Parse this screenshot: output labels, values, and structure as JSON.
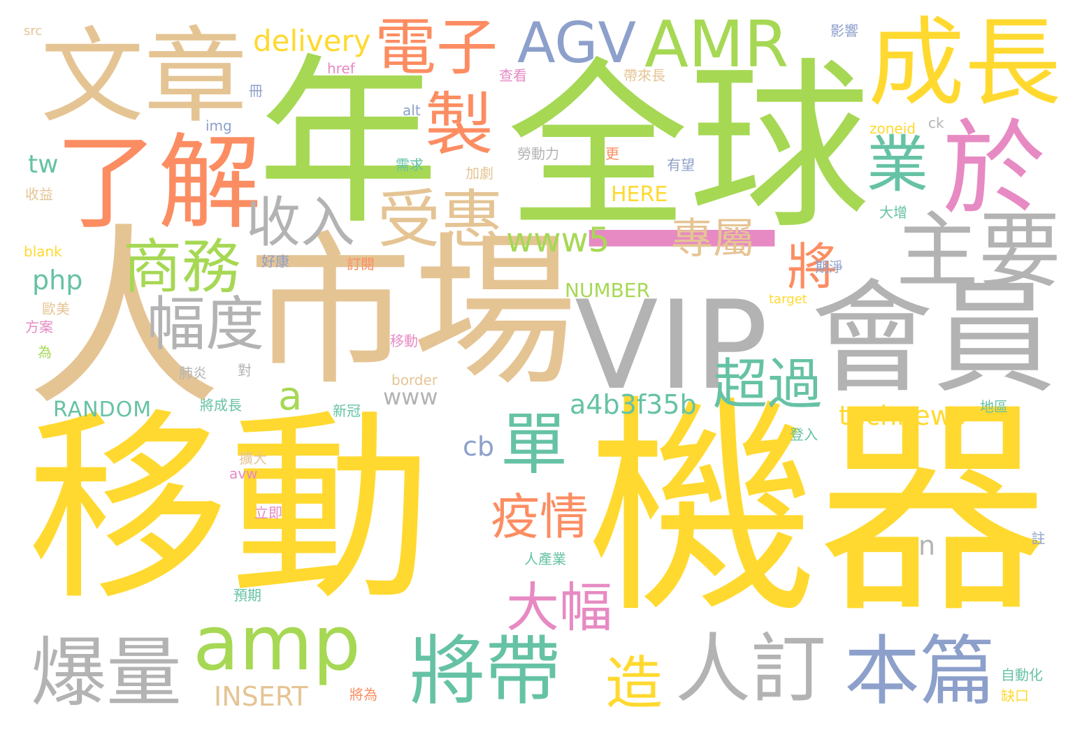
{
  "colors": {
    "yellow": "#FFD92F",
    "green": "#A6D854",
    "tan": "#E5C494",
    "gray": "#B3B3B3",
    "orange": "#FC8D62",
    "blue": "#8DA0CB",
    "pink": "#E78AC3",
    "teal": "#66C2A5"
  },
  "words": [
    {
      "text": "移動",
      "color": "yellow"
    },
    {
      "text": "機器",
      "color": "yellow"
    },
    {
      "text": "全球",
      "color": "green"
    },
    {
      "text": "年",
      "color": "green"
    },
    {
      "text": "市場",
      "color": "tan"
    },
    {
      "text": "人",
      "color": "tan"
    },
    {
      "text": "VIP",
      "color": "gray"
    },
    {
      "text": "會員",
      "color": "gray"
    },
    {
      "text": "文章",
      "color": "tan"
    },
    {
      "text": "了解",
      "color": "orange"
    },
    {
      "text": "成長",
      "color": "yellow"
    },
    {
      "text": "一",
      "color": "pink"
    },
    {
      "text": "主要",
      "color": "gray"
    },
    {
      "text": "於",
      "color": "pink"
    },
    {
      "text": "AMR",
      "color": "green"
    },
    {
      "text": "AGV",
      "color": "blue"
    },
    {
      "text": "電子",
      "color": "orange"
    },
    {
      "text": "製",
      "color": "orange"
    },
    {
      "text": "業",
      "color": "teal"
    },
    {
      "text": "受惠",
      "color": "tan"
    },
    {
      "text": "收入",
      "color": "gray"
    },
    {
      "text": "商務",
      "color": "green"
    },
    {
      "text": "幅度",
      "color": "gray"
    },
    {
      "text": "www5",
      "color": "green"
    },
    {
      "text": "專屬",
      "color": "tan"
    },
    {
      "text": "將",
      "color": "orange"
    },
    {
      "text": "超過",
      "color": "teal"
    },
    {
      "text": "a4b3f35b",
      "color": "teal"
    },
    {
      "text": "單",
      "color": "teal"
    },
    {
      "text": "疫情",
      "color": "orange"
    },
    {
      "text": "大幅",
      "color": "pink"
    },
    {
      "text": "amp",
      "color": "green"
    },
    {
      "text": "爆量",
      "color": "gray"
    },
    {
      "text": "將帶",
      "color": "teal"
    },
    {
      "text": "造",
      "color": "yellow"
    },
    {
      "text": "人訂",
      "color": "gray"
    },
    {
      "text": "本篇",
      "color": "blue"
    },
    {
      "text": "delivery",
      "color": "yellow"
    },
    {
      "text": "tw",
      "color": "teal"
    },
    {
      "text": "php",
      "color": "teal"
    },
    {
      "text": "a",
      "color": "green"
    },
    {
      "text": "www",
      "color": "gray"
    },
    {
      "text": "technews",
      "color": "yellow"
    },
    {
      "text": "cb",
      "color": "blue"
    },
    {
      "text": "RANDOM",
      "color": "teal"
    },
    {
      "text": "INSERT",
      "color": "tan"
    },
    {
      "text": "NUMBER",
      "color": "green"
    },
    {
      "text": "HERE",
      "color": "yellow"
    },
    {
      "text": "n",
      "color": "gray"
    },
    {
      "text": "src",
      "color": "tan"
    },
    {
      "text": "href",
      "color": "pink"
    },
    {
      "text": "冊",
      "color": "blue"
    },
    {
      "text": "alt",
      "color": "blue"
    },
    {
      "text": "img",
      "color": "blue"
    },
    {
      "text": "收益",
      "color": "tan"
    },
    {
      "text": "blank",
      "color": "yellow"
    },
    {
      "text": "好康",
      "color": "blue"
    },
    {
      "text": "訂閱",
      "color": "orange"
    },
    {
      "text": "歐美",
      "color": "tan"
    },
    {
      "text": "方案",
      "color": "pink"
    },
    {
      "text": "為",
      "color": "green"
    },
    {
      "text": "移動",
      "color": "pink"
    },
    {
      "text": "肺炎",
      "color": "gray"
    },
    {
      "text": "對",
      "color": "gray"
    },
    {
      "text": "border",
      "color": "tan"
    },
    {
      "text": "將成長",
      "color": "teal"
    },
    {
      "text": "新冠",
      "color": "teal"
    },
    {
      "text": "擴大",
      "color": "tan"
    },
    {
      "text": "avw",
      "color": "pink"
    },
    {
      "text": "立即",
      "color": "pink"
    },
    {
      "text": "預期",
      "color": "teal"
    },
    {
      "text": "人產業",
      "color": "teal"
    },
    {
      "text": "將為",
      "color": "orange"
    },
    {
      "text": "影響",
      "color": "blue"
    },
    {
      "text": "查看",
      "color": "pink"
    },
    {
      "text": "帶來長",
      "color": "tan"
    },
    {
      "text": "勞動力",
      "color": "gray"
    },
    {
      "text": "更",
      "color": "orange"
    },
    {
      "text": "需求",
      "color": "teal"
    },
    {
      "text": "加劇",
      "color": "tan"
    },
    {
      "text": "有望",
      "color": "blue"
    },
    {
      "text": "zoneid",
      "color": "yellow"
    },
    {
      "text": "ck",
      "color": "gray"
    },
    {
      "text": "大增",
      "color": "teal"
    },
    {
      "text": "期淨",
      "color": "blue"
    },
    {
      "text": "target",
      "color": "yellow"
    },
    {
      "text": "地區",
      "color": "teal"
    },
    {
      "text": "登入",
      "color": "teal"
    },
    {
      "text": "註",
      "color": "blue"
    },
    {
      "text": "自動化",
      "color": "teal"
    },
    {
      "text": "缺口",
      "color": "yellow"
    }
  ]
}
